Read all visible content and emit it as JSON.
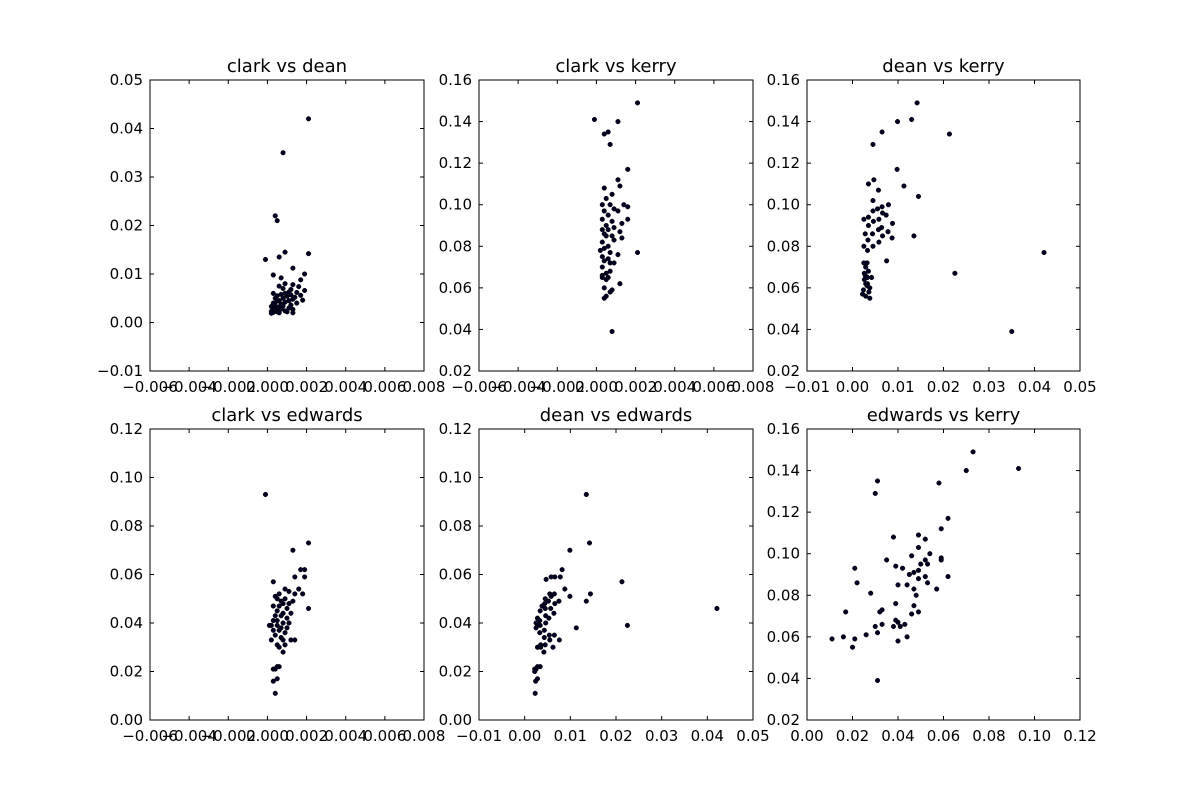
{
  "chart_data": [
    {
      "type": "scatter",
      "title": "clark vs dean",
      "xlabel": "",
      "ylabel": "",
      "xlim": [
        -0.006,
        0.008
      ],
      "ylim": [
        -0.01,
        0.05
      ],
      "xticks": [
        "−0.006",
        "−0.004",
        "−0.002",
        "0.000",
        "0.002",
        "0.004",
        "0.006",
        "0.008"
      ],
      "yticks": [
        "−0.01",
        "0.00",
        "0.01",
        "0.02",
        "0.03",
        "0.04",
        "0.05"
      ],
      "x": [
        0.0021,
        0.0008,
        0.0004,
        0.0005,
        -0.0001,
        0.0009,
        0.0006,
        0.0021,
        0.0013,
        0.0019,
        0.0003,
        0.0007,
        0.0017,
        0.0009,
        0.0013,
        0.0006,
        0.0016,
        0.0008,
        0.0012,
        0.0019,
        0.0011,
        0.0015,
        0.0009,
        0.0003,
        0.0007,
        0.0012,
        0.0017,
        0.0005,
        0.001,
        0.0014,
        0.0004,
        0.0008,
        0.0013,
        0.0018,
        0.0006,
        0.0011,
        0.0005,
        0.0009,
        0.0015,
        0.0003,
        0.0007,
        0.0012,
        0.0004,
        0.0008,
        0.0002,
        0.0006,
        0.0011,
        0.0004,
        0.0007,
        0.0013,
        0.0003,
        0.0006,
        0.0009,
        0.0002,
        0.0005,
        0.001,
        0.0003,
        0.0006,
        0.0013,
        0.0002
      ],
      "y": [
        0.042,
        0.035,
        0.022,
        0.021,
        0.013,
        0.0145,
        0.0135,
        0.0142,
        0.0112,
        0.01,
        0.0098,
        0.0092,
        0.0088,
        0.008,
        0.0078,
        0.0075,
        0.0074,
        0.007,
        0.0068,
        0.0066,
        0.0063,
        0.0062,
        0.006,
        0.006,
        0.0058,
        0.0057,
        0.0056,
        0.0055,
        0.0054,
        0.0052,
        0.005,
        0.005,
        0.0048,
        0.0046,
        0.0045,
        0.0045,
        0.0044,
        0.0042,
        0.004,
        0.004,
        0.0038,
        0.0036,
        0.0035,
        0.0034,
        0.0033,
        0.0032,
        0.003,
        0.003,
        0.0028,
        0.0027,
        0.0026,
        0.0025,
        0.0024,
        0.0023,
        0.0022,
        0.0022,
        0.0021,
        0.002,
        0.002,
        0.0019
      ]
    },
    {
      "type": "scatter",
      "title": "clark vs kerry",
      "xlabel": "",
      "ylabel": "",
      "xlim": [
        -0.006,
        0.008
      ],
      "ylim": [
        0.02,
        0.16
      ],
      "xticks": [
        "−0.006",
        "−0.004",
        "−0.002",
        "0.000",
        "0.002",
        "0.004",
        "0.006",
        "0.008"
      ],
      "yticks": [
        "0.02",
        "0.04",
        "0.06",
        "0.08",
        "0.10",
        "0.12",
        "0.14",
        "0.16"
      ],
      "x": [
        0.0021,
        -0.0001,
        0.0011,
        0.0006,
        0.0004,
        0.0007,
        0.0016,
        0.0011,
        0.0012,
        0.0004,
        0.0008,
        0.0005,
        0.0003,
        0.0007,
        0.0014,
        0.0016,
        0.0009,
        0.0004,
        0.0011,
        0.0006,
        0.0016,
        0.0003,
        0.0008,
        0.0013,
        0.0005,
        0.0009,
        0.0003,
        0.0006,
        0.0012,
        0.0004,
        0.0008,
        0.0005,
        0.0013,
        0.0009,
        0.0003,
        0.0006,
        0.0004,
        0.0002,
        0.0007,
        0.0011,
        0.0003,
        0.0006,
        0.0004,
        0.0007,
        0.0021,
        0.0009,
        0.0003,
        0.0007,
        0.0005,
        0.0003,
        0.0006,
        0.0003,
        0.0005,
        0.0012,
        0.0004,
        0.0008,
        0.0007,
        0.0005,
        0.0004,
        0.0008
      ],
      "y": [
        0.149,
        0.141,
        0.14,
        0.135,
        0.134,
        0.129,
        0.117,
        0.112,
        0.109,
        0.108,
        0.105,
        0.103,
        0.1,
        0.1,
        0.1,
        0.099,
        0.098,
        0.097,
        0.097,
        0.095,
        0.093,
        0.093,
        0.092,
        0.091,
        0.09,
        0.089,
        0.088,
        0.088,
        0.087,
        0.086,
        0.085,
        0.085,
        0.084,
        0.083,
        0.082,
        0.08,
        0.079,
        0.078,
        0.077,
        0.076,
        0.075,
        0.074,
        0.073,
        0.072,
        0.077,
        0.072,
        0.07,
        0.068,
        0.067,
        0.066,
        0.065,
        0.065,
        0.064,
        0.062,
        0.06,
        0.059,
        0.058,
        0.056,
        0.055,
        0.039
      ]
    },
    {
      "type": "scatter",
      "title": "dean vs kerry",
      "xlabel": "",
      "ylabel": "",
      "xlim": [
        -0.01,
        0.05
      ],
      "ylim": [
        0.02,
        0.16
      ],
      "xticks": [
        "−0.01",
        "0.00",
        "0.01",
        "0.02",
        "0.03",
        "0.04",
        "0.05"
      ],
      "yticks": [
        "0.02",
        "0.04",
        "0.06",
        "0.08",
        "0.10",
        "0.12",
        "0.14",
        "0.16"
      ],
      "x": [
        0.0142,
        0.0099,
        0.013,
        0.0065,
        0.0213,
        0.0045,
        0.0098,
        0.0047,
        0.0035,
        0.0113,
        0.0057,
        0.0145,
        0.0045,
        0.0079,
        0.0065,
        0.0055,
        0.0045,
        0.0066,
        0.0074,
        0.0035,
        0.0058,
        0.0025,
        0.0046,
        0.0088,
        0.0035,
        0.0064,
        0.0057,
        0.0078,
        0.0044,
        0.0028,
        0.0066,
        0.0135,
        0.0034,
        0.0087,
        0.0058,
        0.0045,
        0.0025,
        0.0033,
        0.0075,
        0.0032,
        0.0025,
        0.0029,
        0.0035,
        0.0026,
        0.0028,
        0.0033,
        0.0042,
        0.0026,
        0.0029,
        0.0032,
        0.0038,
        0.0024,
        0.0036,
        0.0022,
        0.0029,
        0.0038,
        0.0225,
        0.0421,
        0.035,
        0.0033
      ],
      "y": [
        0.149,
        0.14,
        0.141,
        0.135,
        0.134,
        0.129,
        0.117,
        0.112,
        0.11,
        0.109,
        0.107,
        0.104,
        0.102,
        0.1,
        0.099,
        0.098,
        0.097,
        0.096,
        0.095,
        0.094,
        0.093,
        0.093,
        0.092,
        0.091,
        0.09,
        0.089,
        0.088,
        0.087,
        0.086,
        0.086,
        0.085,
        0.085,
        0.083,
        0.084,
        0.082,
        0.08,
        0.08,
        0.078,
        0.073,
        0.072,
        0.072,
        0.07,
        0.068,
        0.067,
        0.066,
        0.065,
        0.065,
        0.064,
        0.062,
        0.061,
        0.06,
        0.059,
        0.058,
        0.057,
        0.056,
        0.055,
        0.067,
        0.077,
        0.039,
        0.062
      ]
    },
    {
      "type": "scatter",
      "title": "clark vs edwards",
      "xlabel": "",
      "ylabel": "",
      "xlim": [
        -0.006,
        0.008
      ],
      "ylim": [
        0.0,
        0.12
      ],
      "xticks": [
        "−0.006",
        "−0.004",
        "−0.002",
        "0.000",
        "0.002",
        "0.004",
        "0.006",
        "0.008"
      ],
      "yticks": [
        "0.00",
        "0.02",
        "0.04",
        "0.06",
        "0.08",
        "0.10",
        "0.12"
      ],
      "x": [
        -0.0001,
        0.0021,
        0.0013,
        0.0017,
        0.0019,
        0.0014,
        0.0019,
        0.0003,
        0.0016,
        0.0009,
        0.0011,
        0.0014,
        0.0006,
        0.0018,
        0.0004,
        0.0009,
        0.0005,
        0.0007,
        0.0013,
        0.0008,
        0.0011,
        0.0003,
        0.0006,
        0.001,
        0.0005,
        0.0021,
        0.0008,
        0.0012,
        0.0004,
        0.0007,
        0.001,
        0.0003,
        0.0005,
        0.0008,
        0.0011,
        0.0002,
        0.0005,
        0.0007,
        0.001,
        0.0003,
        0.0006,
        0.0009,
        0.0001,
        0.0004,
        0.0007,
        0.0002,
        0.0008,
        0.0012,
        0.0014,
        0.0005,
        0.0009,
        0.0006,
        0.0008,
        0.0006,
        0.0005,
        0.0003,
        0.0004,
        0.0005,
        0.0003,
        0.0004
      ],
      "y": [
        0.093,
        0.073,
        0.07,
        0.062,
        0.062,
        0.059,
        0.059,
        0.057,
        0.054,
        0.054,
        0.053,
        0.052,
        0.052,
        0.052,
        0.051,
        0.05,
        0.05,
        0.049,
        0.049,
        0.048,
        0.048,
        0.047,
        0.047,
        0.046,
        0.045,
        0.046,
        0.044,
        0.044,
        0.043,
        0.043,
        0.042,
        0.041,
        0.041,
        0.04,
        0.04,
        0.039,
        0.039,
        0.038,
        0.038,
        0.037,
        0.037,
        0.036,
        0.039,
        0.035,
        0.034,
        0.033,
        0.033,
        0.033,
        0.033,
        0.031,
        0.031,
        0.03,
        0.028,
        0.022,
        0.022,
        0.021,
        0.021,
        0.017,
        0.016,
        0.011
      ]
    },
    {
      "type": "scatter",
      "title": "dean vs edwards",
      "xlabel": "",
      "ylabel": "",
      "xlim": [
        -0.01,
        0.05
      ],
      "ylim": [
        0.0,
        0.12
      ],
      "xticks": [
        "−0.01",
        "0.00",
        "0.01",
        "0.02",
        "0.03",
        "0.04",
        "0.05"
      ],
      "yticks": [
        "0.00",
        "0.02",
        "0.04",
        "0.06",
        "0.08",
        "0.10",
        "0.12"
      ],
      "x": [
        0.0135,
        0.0142,
        0.0099,
        0.0058,
        0.0082,
        0.0078,
        0.0066,
        0.0047,
        0.0213,
        0.0088,
        0.0144,
        0.0055,
        0.0065,
        0.0058,
        0.0045,
        0.0099,
        0.0075,
        0.0052,
        0.0135,
        0.0066,
        0.0044,
        0.0038,
        0.0057,
        0.0045,
        0.0034,
        0.0064,
        0.0046,
        0.0028,
        0.0053,
        0.0033,
        0.0025,
        0.0046,
        0.0034,
        0.0028,
        0.0113,
        0.0025,
        0.0043,
        0.0033,
        0.0026,
        0.0065,
        0.0225,
        0.0043,
        0.0055,
        0.0076,
        0.0035,
        0.0054,
        0.0062,
        0.0045,
        0.0028,
        0.0042,
        0.0034,
        0.0028,
        0.0022,
        0.0025,
        0.0028,
        0.0024,
        0.0023,
        0.0022,
        0.0035,
        0.0421
      ],
      "y": [
        0.093,
        0.073,
        0.07,
        0.059,
        0.062,
        0.059,
        0.059,
        0.058,
        0.057,
        0.054,
        0.052,
        0.052,
        0.052,
        0.051,
        0.05,
        0.051,
        0.049,
        0.049,
        0.049,
        0.048,
        0.048,
        0.047,
        0.046,
        0.046,
        0.045,
        0.044,
        0.043,
        0.042,
        0.042,
        0.041,
        0.04,
        0.04,
        0.039,
        0.039,
        0.038,
        0.038,
        0.037,
        0.036,
        0.04,
        0.035,
        0.039,
        0.034,
        0.033,
        0.033,
        0.031,
        0.035,
        0.03,
        0.031,
        0.03,
        0.028,
        0.022,
        0.022,
        0.021,
        0.021,
        0.017,
        0.016,
        0.011,
        0.02,
        0.03,
        0.046
      ]
    },
    {
      "type": "scatter",
      "title": "edwards vs kerry",
      "xlabel": "",
      "ylabel": "",
      "xlim": [
        0.0,
        0.12
      ],
      "ylim": [
        0.02,
        0.16
      ],
      "xticks": [
        "0.00",
        "0.02",
        "0.04",
        "0.06",
        "0.08",
        "0.10",
        "0.12"
      ],
      "yticks": [
        "0.02",
        "0.04",
        "0.06",
        "0.08",
        "0.10",
        "0.12",
        "0.14",
        "0.16"
      ],
      "x": [
        0.073,
        0.093,
        0.07,
        0.031,
        0.058,
        0.03,
        0.062,
        0.059,
        0.049,
        0.052,
        0.038,
        0.035,
        0.046,
        0.059,
        0.049,
        0.042,
        0.054,
        0.052,
        0.05,
        0.053,
        0.039,
        0.059,
        0.049,
        0.047,
        0.045,
        0.052,
        0.021,
        0.062,
        0.044,
        0.04,
        0.049,
        0.053,
        0.047,
        0.028,
        0.048,
        0.017,
        0.039,
        0.033,
        0.032,
        0.049,
        0.043,
        0.047,
        0.046,
        0.039,
        0.04,
        0.033,
        0.03,
        0.041,
        0.022,
        0.031,
        0.026,
        0.044,
        0.011,
        0.04,
        0.016,
        0.021,
        0.02,
        0.031,
        0.038,
        0.057
      ],
      "y": [
        0.149,
        0.141,
        0.14,
        0.135,
        0.134,
        0.129,
        0.117,
        0.112,
        0.109,
        0.107,
        0.108,
        0.097,
        0.099,
        0.098,
        0.103,
        0.093,
        0.1,
        0.097,
        0.095,
        0.095,
        0.094,
        0.097,
        0.092,
        0.091,
        0.09,
        0.089,
        0.093,
        0.089,
        0.085,
        0.085,
        0.088,
        0.086,
        0.083,
        0.081,
        0.08,
        0.072,
        0.076,
        0.073,
        0.072,
        0.072,
        0.066,
        0.075,
        0.071,
        0.068,
        0.067,
        0.066,
        0.065,
        0.065,
        0.086,
        0.062,
        0.061,
        0.06,
        0.059,
        0.058,
        0.06,
        0.059,
        0.055,
        0.039,
        0.065,
        0.083
      ]
    }
  ]
}
